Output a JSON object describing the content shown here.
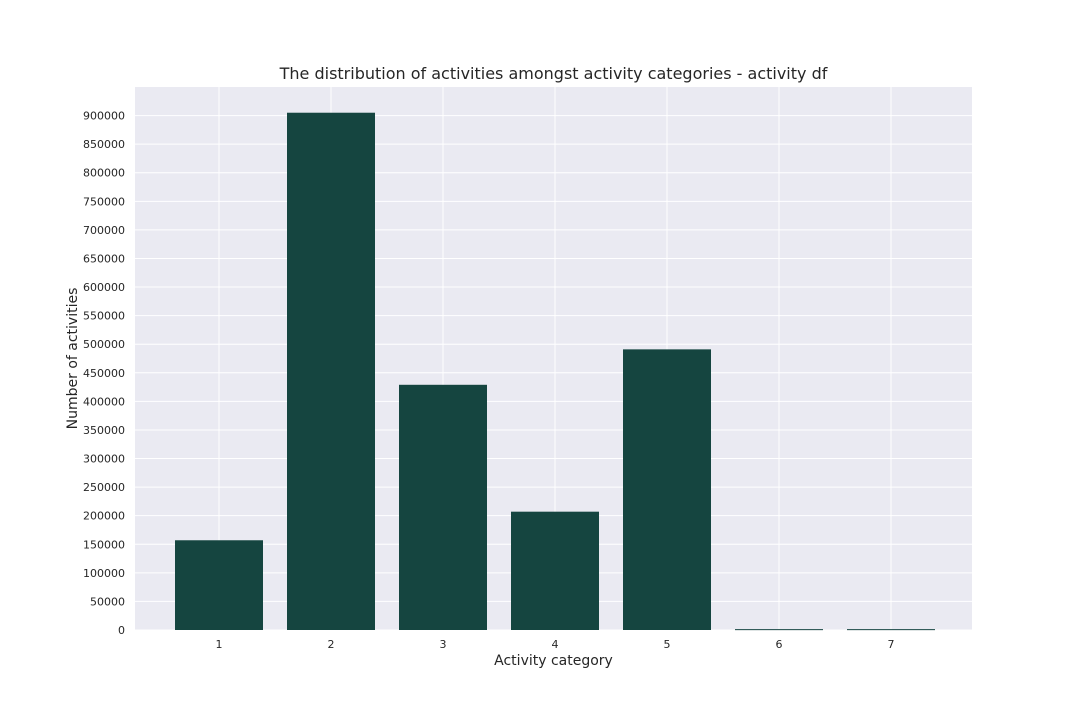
{
  "chart_data": {
    "type": "bar",
    "title": "The distribution of activities amongst activity categories - activity df",
    "xlabel": "Activity category",
    "ylabel": "Number of activities",
    "categories": [
      "1",
      "2",
      "3",
      "4",
      "5",
      "6",
      "7"
    ],
    "values": [
      157000,
      905000,
      429000,
      207000,
      491000,
      1500,
      1500
    ],
    "ylim": [
      0,
      950000
    ],
    "yticks": [
      0,
      50000,
      100000,
      150000,
      200000,
      250000,
      300000,
      350000,
      400000,
      450000,
      500000,
      550000,
      600000,
      650000,
      700000,
      750000,
      800000,
      850000,
      900000
    ],
    "grid": true,
    "legend": "none",
    "colors": {
      "bar": "#154540",
      "plot_background": "#eaeaf2",
      "grid": "#ffffff",
      "text": "#262626"
    }
  }
}
